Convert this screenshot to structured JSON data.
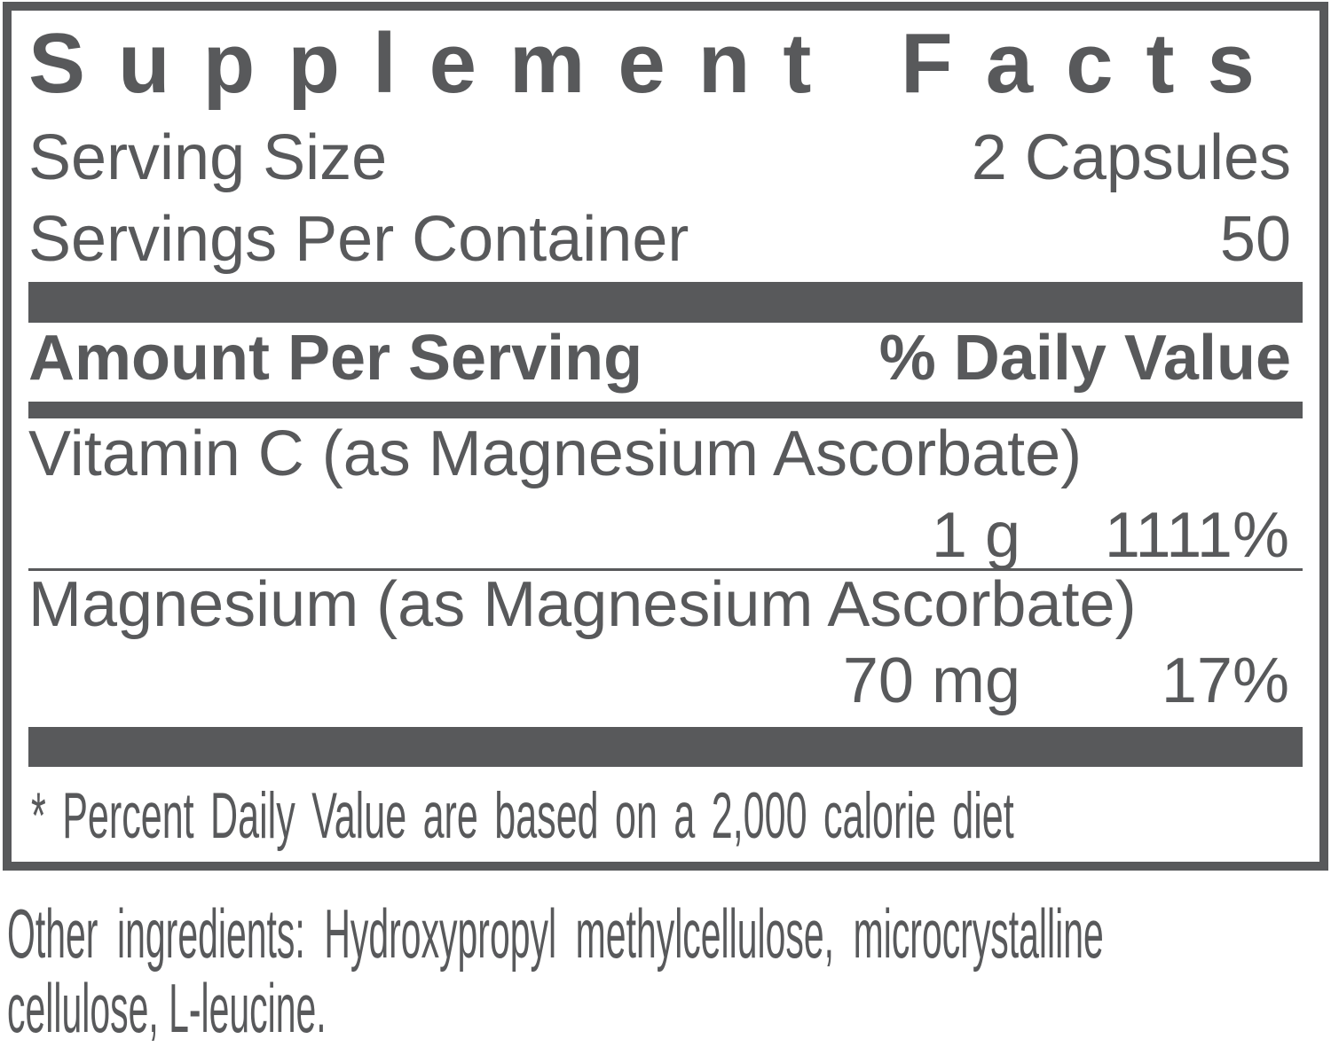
{
  "colors": {
    "ink": "#58595b",
    "background": "#ffffff"
  },
  "panel": {
    "title": "Supplement Facts",
    "serving": [
      {
        "label": "Serving Size",
        "value": "2 Capsules"
      },
      {
        "label": "Servings Per Container",
        "value": "50"
      }
    ],
    "columns": {
      "amount_header": "Amount Per Serving",
      "daily_value_header": "% Daily Value"
    },
    "nutrients": [
      {
        "name": "Vitamin C (as Magnesium Ascorbate)",
        "amount": "1 g",
        "daily_value": "1111%"
      },
      {
        "name": "Magnesium (as Magnesium Ascorbate)",
        "amount": "70 mg",
        "daily_value": "17%"
      }
    ],
    "footnote": "* Percent Daily Value are based on a 2,000 calorie diet"
  },
  "other_ingredients": {
    "lines": [
      "Other ingredients: Hydroxypropyl methylcellulose, microcrystalline",
      "cellulose, L-leucine."
    ]
  }
}
